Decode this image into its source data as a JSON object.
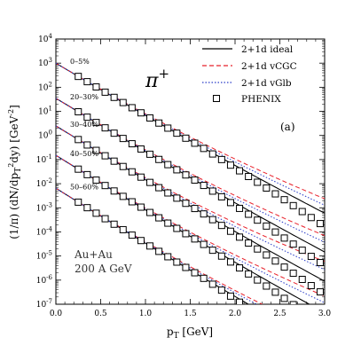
{
  "chart_data": {
    "type": "line",
    "xlabel": "p_T [GeV]",
    "ylabel": "(1/π) (dN/dp_T²dy) [GeV⁻²]",
    "xlim": [
      0.0,
      3.0
    ],
    "ylim": [
      1e-07,
      10000.0
    ],
    "y_scale": "log",
    "x_ticks": [
      "0.0",
      "0.5",
      "1.0",
      "1.5",
      "2.0",
      "2.5",
      "3.0"
    ],
    "y_tick_exponents": [
      -7,
      -6,
      -5,
      -4,
      -3,
      -2,
      -1,
      0,
      1,
      2,
      3,
      4
    ],
    "particle_label": "π+",
    "panel_tag": "(a)",
    "corner_text": [
      "Au+Au",
      "200 A GeV"
    ],
    "legend_position": "top-right",
    "legend": [
      {
        "label": "2+1d ideal",
        "style": "solid",
        "color": "#000000"
      },
      {
        "label": "2+1d vCGC",
        "style": "dashed",
        "color": "#e8202a"
      },
      {
        "label": "2+1d vGlb",
        "style": "dotted",
        "color": "#2a3cc8"
      },
      {
        "label": "PHENIX",
        "style": "marker",
        "color": "#000000"
      }
    ],
    "centralities": [
      {
        "label": "0–5%",
        "y0": 1000,
        "slope": 5.1,
        "curv": 0.18,
        "dvc": 0.09,
        "dvg": 0.05,
        "pt_start": 0.0
      },
      {
        "label": "20–30%",
        "y0": 35,
        "slope": 5.2,
        "curv": 0.17,
        "dvc": 0.1,
        "dvg": 0.06,
        "pt_start": 0.0
      },
      {
        "label": "30–40%",
        "y0": 2.5,
        "slope": 5.25,
        "curv": 0.17,
        "dvc": 0.12,
        "dvg": 0.07,
        "pt_start": 0.0
      },
      {
        "label": "40–50%",
        "y0": 0.15,
        "slope": 5.3,
        "curv": 0.16,
        "dvc": 0.1,
        "dvg": 0.06,
        "pt_start": 0.0
      },
      {
        "label": "50–60%",
        "y0": 0.0065,
        "slope": 5.35,
        "curv": 0.15,
        "dvc": 0.08,
        "dvg": 0.05,
        "pt_start": 0.0
      }
    ],
    "phenix_pt": [
      0.25,
      0.35,
      0.45,
      0.55,
      0.65,
      0.75,
      0.85,
      0.95,
      1.05,
      1.15,
      1.25,
      1.35,
      1.45,
      1.55,
      1.65,
      1.75,
      1.85,
      1.95,
      2.05,
      2.15,
      2.25,
      2.35,
      2.45,
      2.55,
      2.65,
      2.75,
      2.85,
      2.95
    ]
  }
}
